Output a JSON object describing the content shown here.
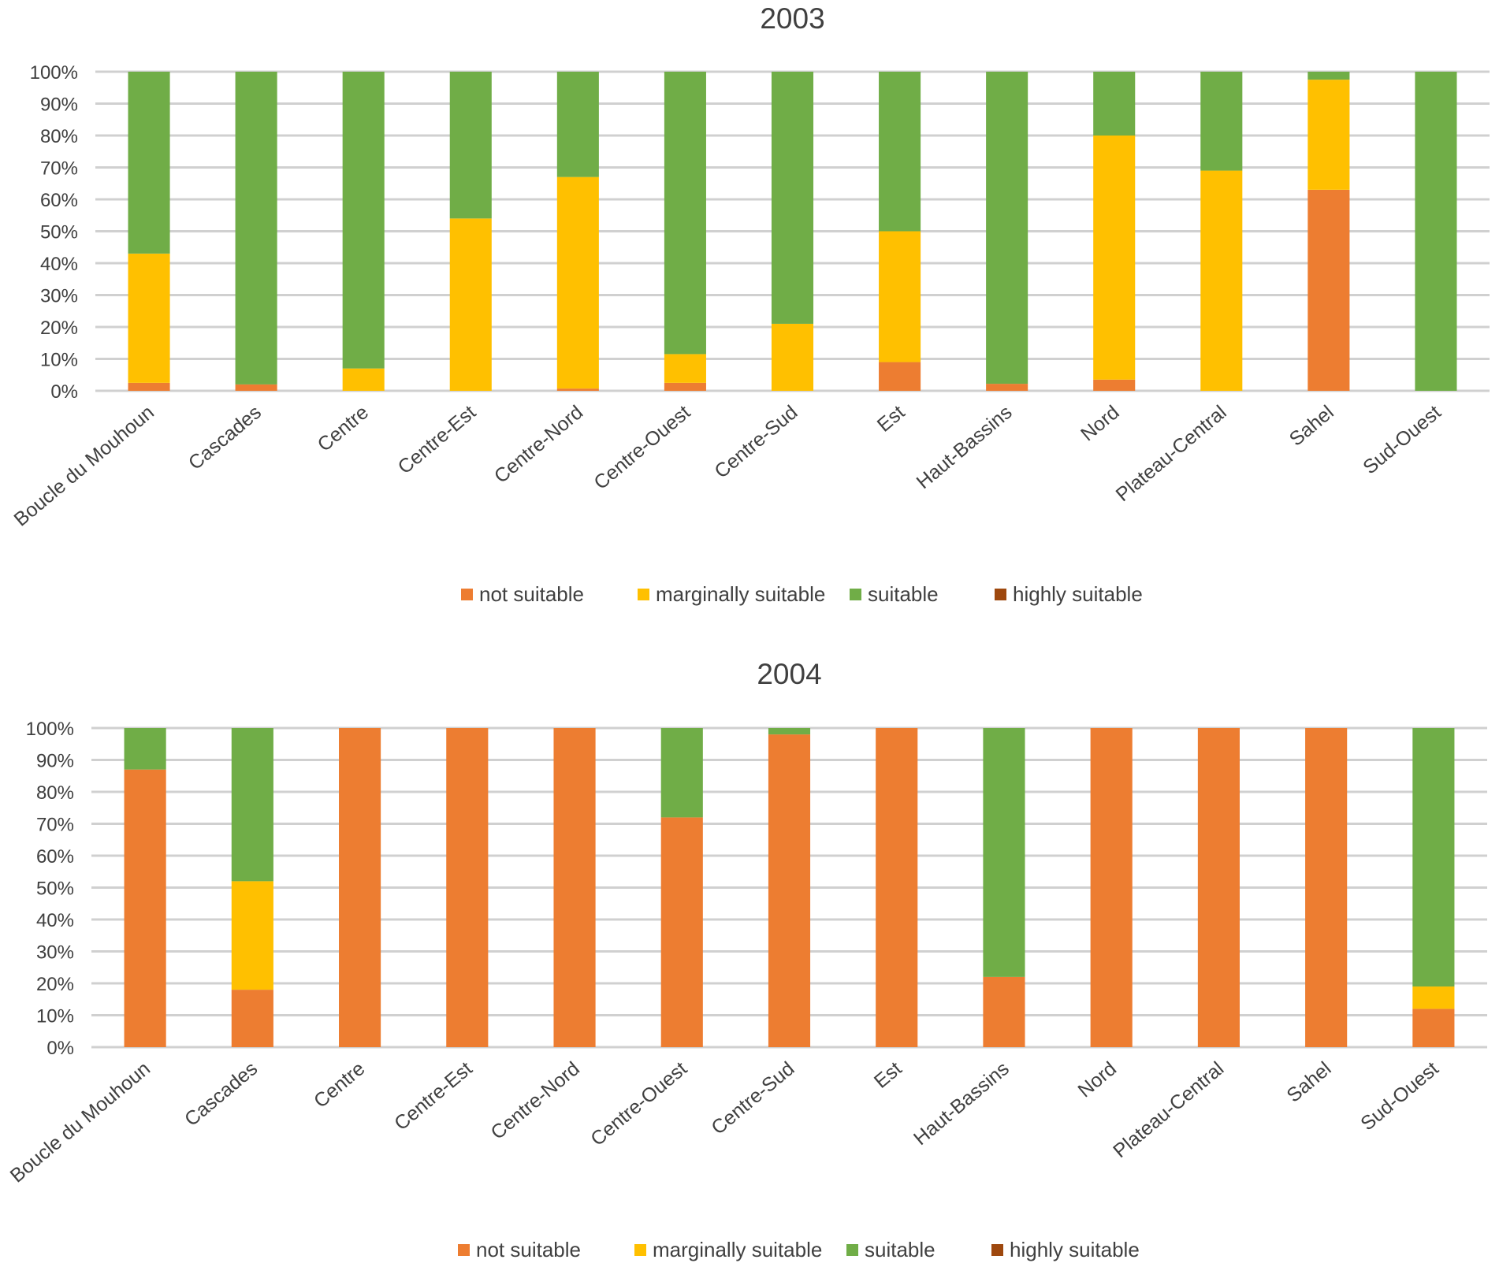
{
  "chart_data": [
    {
      "type": "bar",
      "stacked": "percent",
      "title": "2003",
      "xlabel": "",
      "ylabel": "",
      "ylim": [
        0,
        100
      ],
      "yticks": [
        "0%",
        "10%",
        "20%",
        "30%",
        "40%",
        "50%",
        "60%",
        "70%",
        "80%",
        "90%",
        "100%"
      ],
      "grid": true,
      "legend_position": "bottom",
      "categories": [
        "Boucle du Mouhoun",
        "Cascades",
        "Centre",
        "Centre-Est",
        "Centre-Nord",
        "Centre-Ouest",
        "Centre-Sud",
        "Est",
        "Haut-Bassins",
        "Nord",
        "Plateau-Central",
        "Sahel",
        "Sud-Ouest"
      ],
      "series": [
        {
          "name": "not suitable",
          "color": "#ED7D31",
          "values": [
            2.5,
            2,
            0,
            0,
            0.7,
            2.5,
            0,
            9,
            2.2,
            3.5,
            0,
            63,
            0
          ]
        },
        {
          "name": "marginally suitable",
          "color": "#FFC000",
          "values": [
            40.5,
            0,
            7,
            54,
            66.3,
            9,
            21,
            41,
            0,
            76.5,
            69,
            34.5,
            0
          ]
        },
        {
          "name": "suitable",
          "color": "#70AD47",
          "values": [
            57,
            98,
            93,
            46,
            33,
            88.5,
            79,
            50,
            97.8,
            20,
            31,
            2.5,
            100
          ]
        },
        {
          "name": "highly suitable",
          "color": "#9E480E",
          "values": [
            0,
            0,
            0,
            0,
            0,
            0,
            0,
            0,
            0,
            0,
            0,
            0,
            0
          ]
        }
      ]
    },
    {
      "type": "bar",
      "stacked": "percent",
      "title": "2004",
      "xlabel": "",
      "ylabel": "",
      "ylim": [
        0,
        100
      ],
      "yticks": [
        "0%",
        "10%",
        "20%",
        "30%",
        "40%",
        "50%",
        "60%",
        "70%",
        "80%",
        "90%",
        "100%"
      ],
      "grid": true,
      "legend_position": "bottom",
      "categories": [
        "Boucle du Mouhoun",
        "Cascades",
        "Centre",
        "Centre-Est",
        "Centre-Nord",
        "Centre-Ouest",
        "Centre-Sud",
        "Est",
        "Haut-Bassins",
        "Nord",
        "Plateau-Central",
        "Sahel",
        "Sud-Ouest"
      ],
      "series": [
        {
          "name": "not suitable",
          "color": "#ED7D31",
          "values": [
            87,
            18,
            100,
            100,
            100,
            72,
            98,
            100,
            22,
            100,
            100,
            100,
            12
          ]
        },
        {
          "name": "marginally suitable",
          "color": "#FFC000",
          "values": [
            0,
            34,
            0,
            0,
            0,
            0,
            0,
            0,
            0,
            0,
            0,
            0,
            7
          ]
        },
        {
          "name": "suitable",
          "color": "#70AD47",
          "values": [
            13,
            48,
            0,
            0,
            0,
            28,
            2,
            0,
            78,
            0,
            0,
            0,
            81
          ]
        },
        {
          "name": "highly suitable",
          "color": "#9E480E",
          "values": [
            0,
            0,
            0,
            0,
            0,
            0,
            0,
            0,
            0,
            0,
            0,
            0,
            0
          ]
        }
      ]
    }
  ]
}
